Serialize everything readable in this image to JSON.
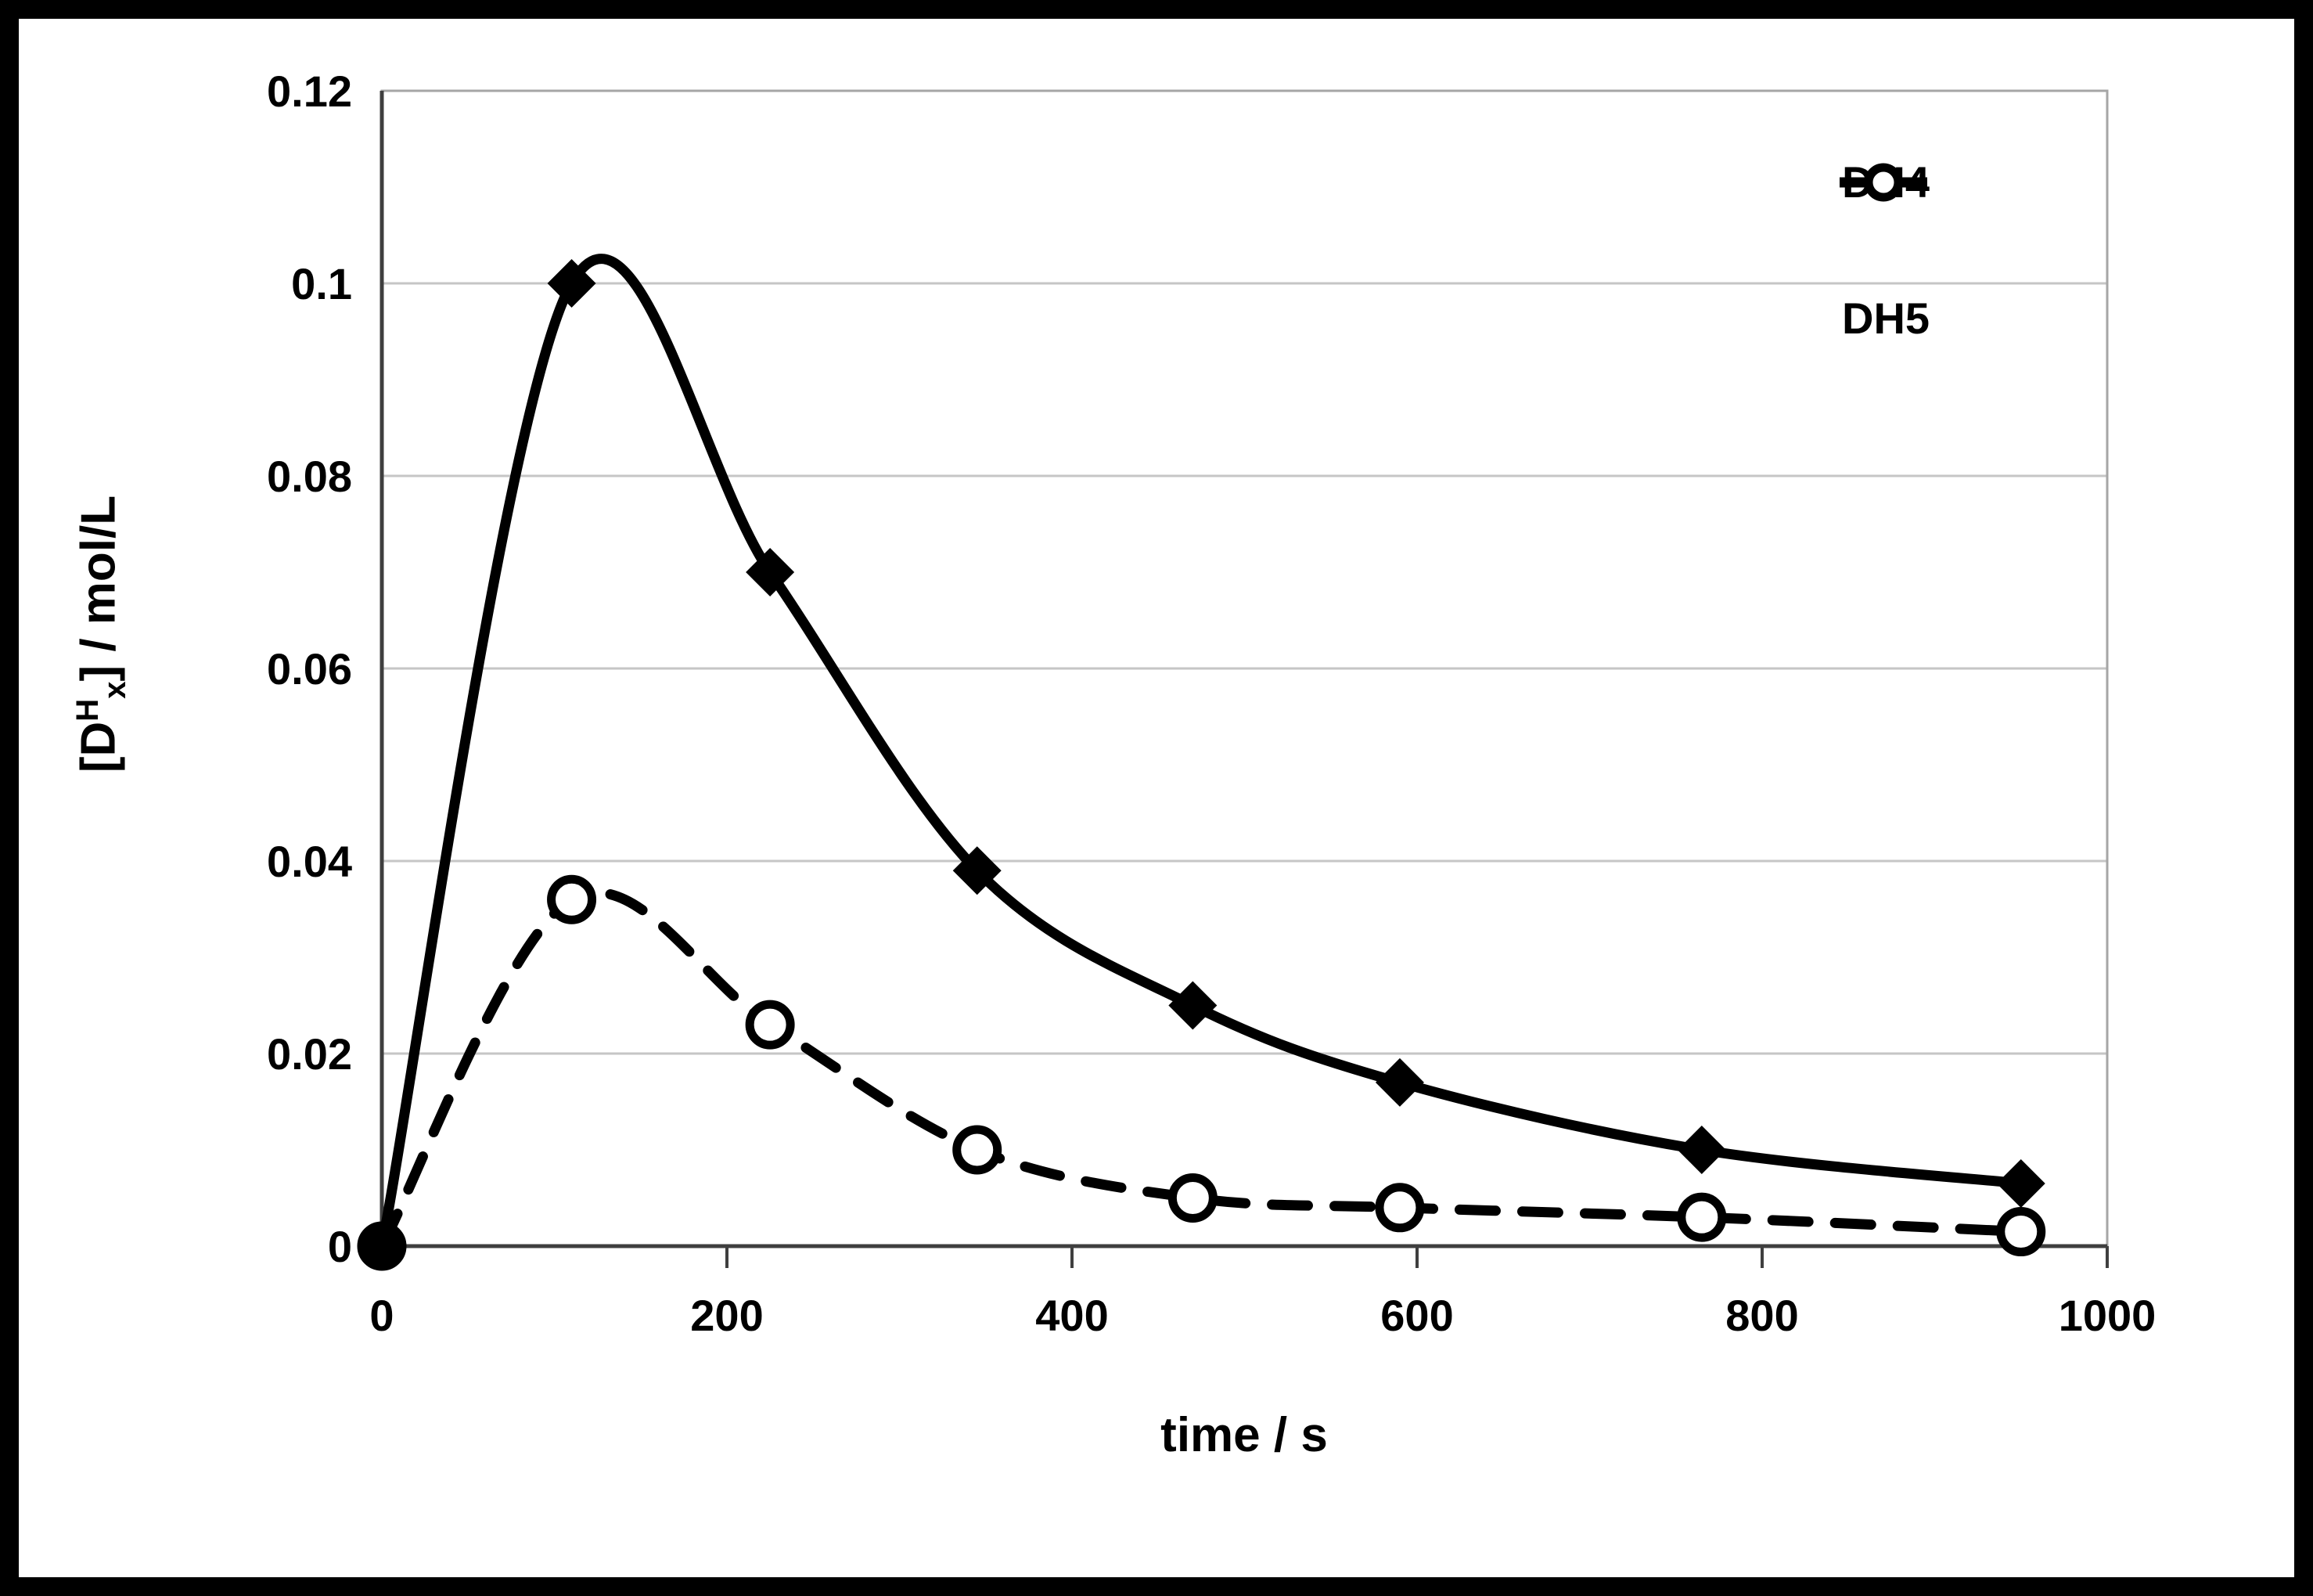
{
  "figure": {
    "background": "#ffffff",
    "frame_color": "#000000"
  },
  "chart_data": {
    "type": "line",
    "title": "",
    "xlabel": "time / s",
    "ylabel": {
      "pre": "[D",
      "sup": "H",
      "sub": "x",
      "post": "] / mol/L"
    },
    "xlim": [
      0,
      1000
    ],
    "ylim": [
      0,
      0.12
    ],
    "x_ticks": [
      0,
      200,
      400,
      600,
      800,
      1000
    ],
    "x_tick_labels": [
      "0",
      "200",
      "400",
      "600",
      "800",
      "1000"
    ],
    "y_ticks": [
      0,
      0.02,
      0.04,
      0.06,
      0.08,
      0.1,
      0.12
    ],
    "y_tick_labels": [
      "0",
      "0.02",
      "0.04",
      "0.06",
      "0.08",
      "0.1",
      "0.12"
    ],
    "grid": "horizontal-only",
    "legend_position": "top-right-inside",
    "x": [
      0,
      110,
      225,
      345,
      470,
      590,
      765,
      950
    ],
    "series": [
      {
        "name": "DH4",
        "marker": "filled-diamond",
        "line": "solid",
        "color": "#000000",
        "values": [
          0,
          0.1,
          0.07,
          0.039,
          0.025,
          0.017,
          0.01,
          0.0065
        ]
      },
      {
        "name": "DH5",
        "marker": "open-circle",
        "line": "dashed",
        "color": "#000000",
        "values": [
          0,
          0.036,
          0.023,
          0.01,
          0.005,
          0.004,
          0.003,
          0.0015
        ]
      }
    ],
    "colors": {
      "series": "#000000",
      "gridline": "#c6c6c6",
      "axis": "#3f3f3f",
      "plot_border": "#a6a6a6"
    }
  }
}
